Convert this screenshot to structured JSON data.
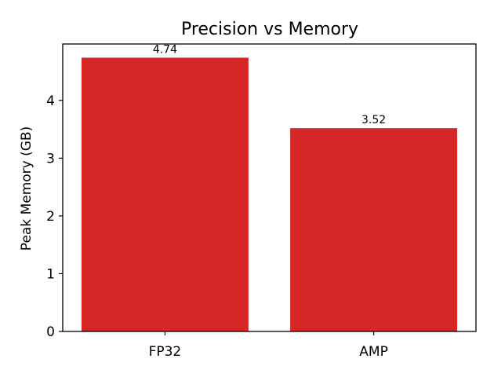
{
  "chart_data": {
    "type": "bar",
    "title": "Precision vs Memory",
    "xlabel": "",
    "ylabel": "Peak Memory (GB)",
    "categories": [
      "FP32",
      "AMP"
    ],
    "values": [
      4.74,
      3.52
    ],
    "data_labels": [
      "4.74",
      "3.52"
    ],
    "yticks": [
      0,
      1,
      2,
      3,
      4
    ],
    "ylim": [
      0,
      4.977
    ],
    "bar_color": "#d62728",
    "grid": false,
    "legend": "none"
  }
}
